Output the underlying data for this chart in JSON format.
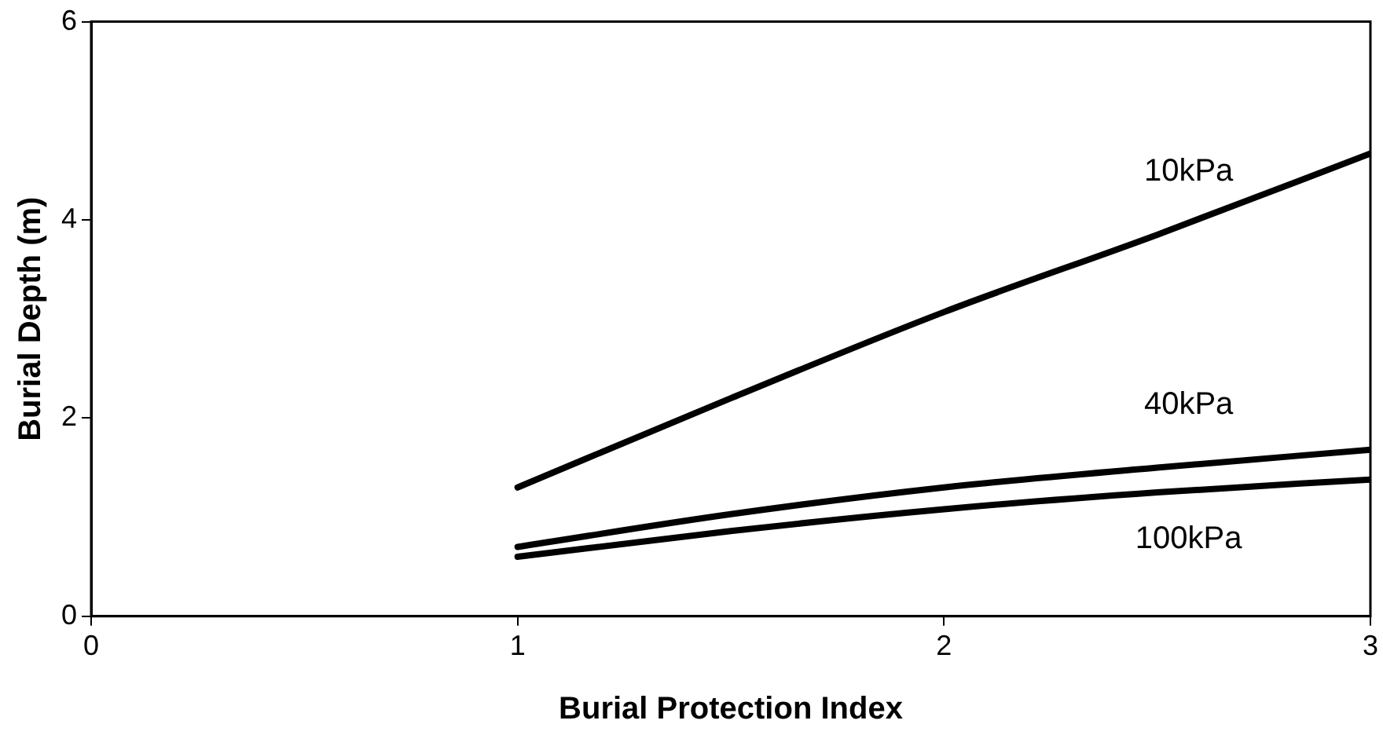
{
  "chart_data": {
    "type": "line",
    "xlabel": "Burial Protection Index",
    "ylabel": "Burial Depth (m)",
    "xlim": [
      0,
      3
    ],
    "xticks": [
      0,
      1,
      2,
      3
    ],
    "ylim": [
      0,
      6
    ],
    "yticks": [
      0,
      2,
      4,
      6
    ],
    "grid": false,
    "legend": false,
    "marker": "none",
    "line_style": "solid",
    "series": [
      {
        "name": "10kPa",
        "color": "#000000",
        "x": [
          1,
          1.5,
          2,
          2.5,
          3
        ],
        "values": [
          1.3,
          2.2,
          3.07,
          3.85,
          4.67
        ]
      },
      {
        "name": "40kPa",
        "color": "#000000",
        "x": [
          1,
          1.5,
          2,
          2.5,
          3
        ],
        "values": [
          0.7,
          1.03,
          1.3,
          1.5,
          1.68
        ]
      },
      {
        "name": "100kPa",
        "color": "#000000",
        "x": [
          1,
          1.5,
          2,
          2.5,
          3
        ],
        "values": [
          0.6,
          0.86,
          1.08,
          1.25,
          1.38
        ]
      }
    ]
  }
}
